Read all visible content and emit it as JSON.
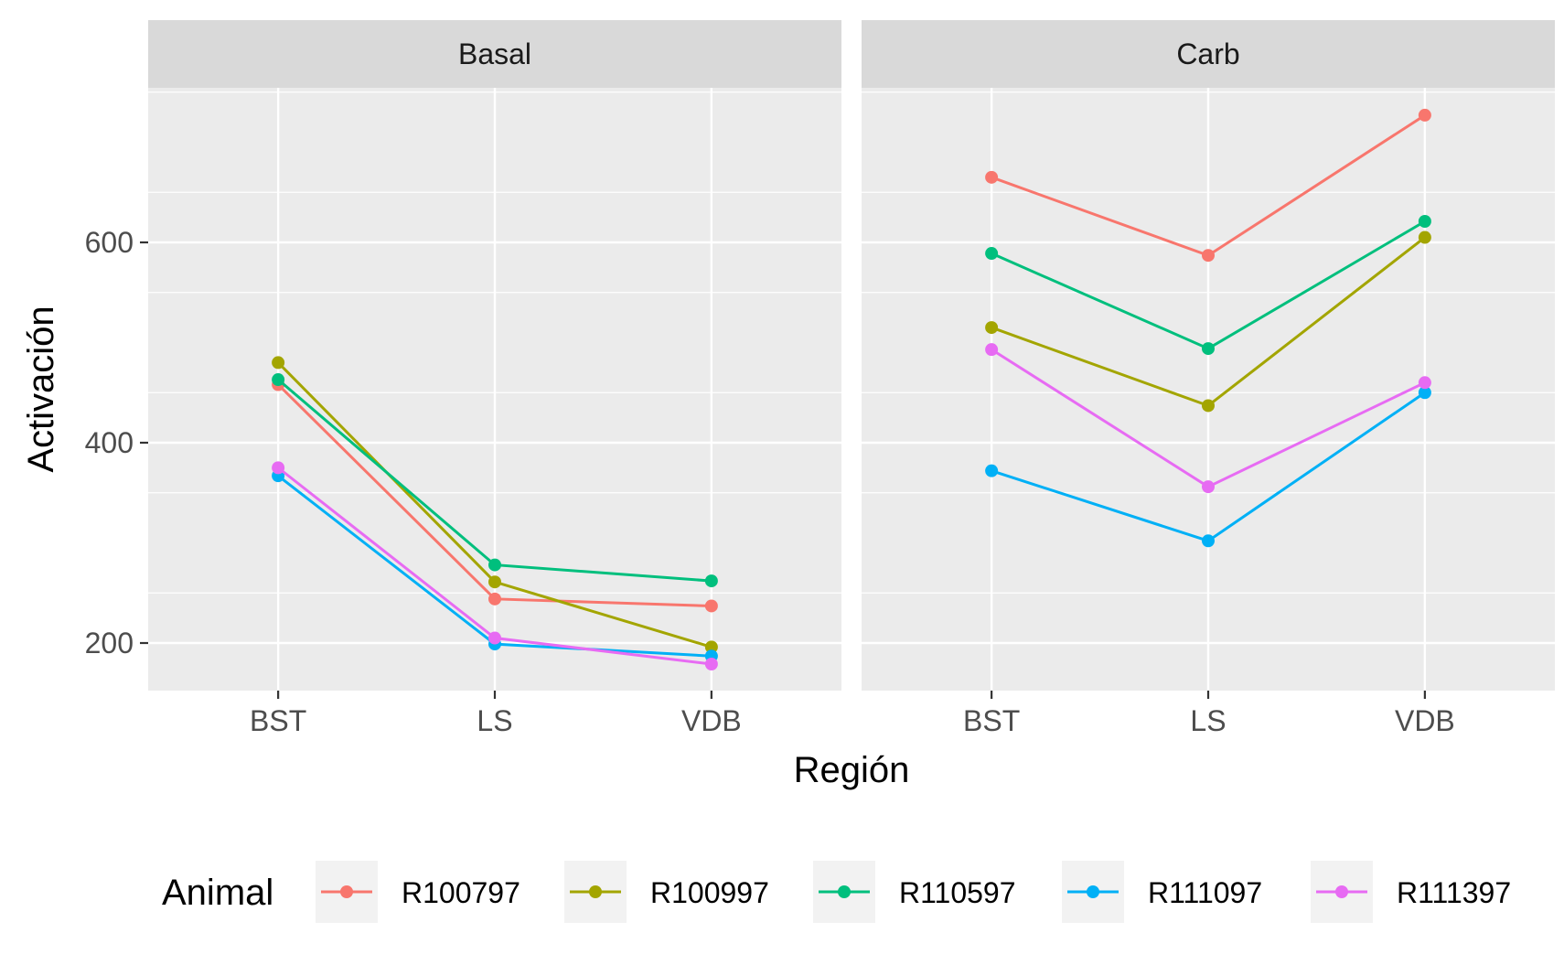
{
  "chart_data": {
    "type": "line",
    "facets": [
      "Basal",
      "Carb"
    ],
    "categories": [
      "BST",
      "LS",
      "VDB"
    ],
    "xlabel": "Región",
    "ylabel": "Activación",
    "ylim": [
      150,
      750
    ],
    "yticks": [
      200,
      400,
      600
    ],
    "grid": true,
    "legend": {
      "title": "Animal",
      "position": "bottom"
    },
    "series": [
      {
        "name": "R100797",
        "color": "#F8766D",
        "values": {
          "Basal": [
            458,
            244,
            237
          ],
          "Carb": [
            665,
            587,
            727
          ]
        }
      },
      {
        "name": "R100997",
        "color": "#A3A500",
        "values": {
          "Basal": [
            480,
            261,
            196
          ],
          "Carb": [
            515,
            437,
            605
          ]
        }
      },
      {
        "name": "R110597",
        "color": "#00BF7D",
        "values": {
          "Basal": [
            463,
            278,
            262
          ],
          "Carb": [
            589,
            494,
            621
          ]
        }
      },
      {
        "name": "R111097",
        "color": "#00B0F6",
        "values": {
          "Basal": [
            367,
            199,
            187
          ],
          "Carb": [
            372,
            302,
            450
          ]
        }
      },
      {
        "name": "R111397",
        "color": "#E76BF3",
        "values": {
          "Basal": [
            375,
            205,
            179
          ],
          "Carb": [
            493,
            356,
            460
          ]
        }
      }
    ]
  }
}
